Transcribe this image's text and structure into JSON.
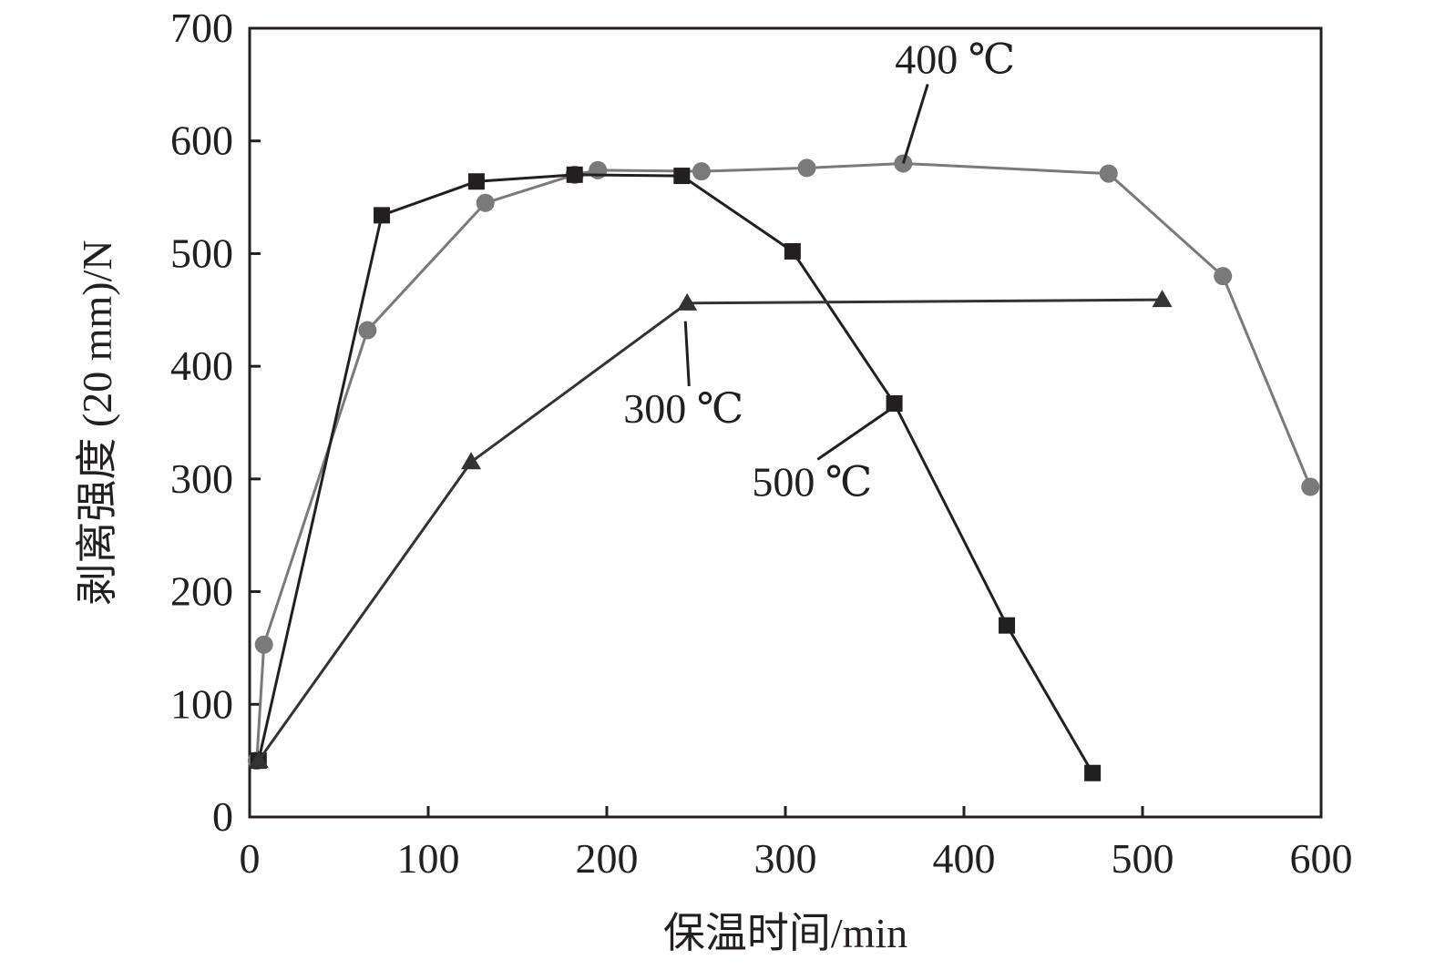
{
  "chart_data": {
    "type": "line",
    "title": "",
    "xlabel": "保温时间/min",
    "ylabel": "剥离强度 (20 mm)/N",
    "xlim": [
      0,
      600
    ],
    "ylim": [
      0,
      700
    ],
    "xticks": [
      0,
      100,
      200,
      300,
      400,
      500,
      600
    ],
    "yticks": [
      0,
      100,
      200,
      300,
      400,
      500,
      600,
      700
    ],
    "grid": false,
    "legend": "none (inline annotations)",
    "series": [
      {
        "name": "400 ℃",
        "marker": "circle",
        "color": "#7a7a7a",
        "x": [
          4,
          8,
          66,
          132,
          182,
          195,
          253,
          312,
          366,
          481,
          545,
          594
        ],
        "y": [
          50,
          153,
          432,
          545,
          570,
          574,
          573,
          576,
          580,
          571,
          480,
          293
        ]
      },
      {
        "name": "500 ℃",
        "marker": "square",
        "color": "#231f20",
        "x": [
          5,
          74,
          127,
          182,
          242,
          304,
          361,
          424,
          472
        ],
        "y": [
          50,
          534,
          564,
          570,
          569,
          502,
          367,
          170,
          39
        ]
      },
      {
        "name": "300 ℃",
        "marker": "triangle",
        "color": "#333333",
        "x": [
          5,
          124,
          245,
          511
        ],
        "y": [
          50,
          315,
          456,
          459
        ]
      }
    ],
    "annotations": [
      {
        "text": "400 ℃",
        "series": "400 ℃",
        "label_at": [
          395,
          660
        ],
        "points_to": [
          366,
          580
        ]
      },
      {
        "text": "300 ℃",
        "series": "300 ℃",
        "label_at": [
          243,
          350
        ],
        "points_to": [
          244,
          440
        ]
      },
      {
        "text": "500 ℃",
        "series": "500 ℃",
        "label_at": [
          315,
          285
        ],
        "points_to": [
          359,
          362
        ]
      }
    ]
  }
}
